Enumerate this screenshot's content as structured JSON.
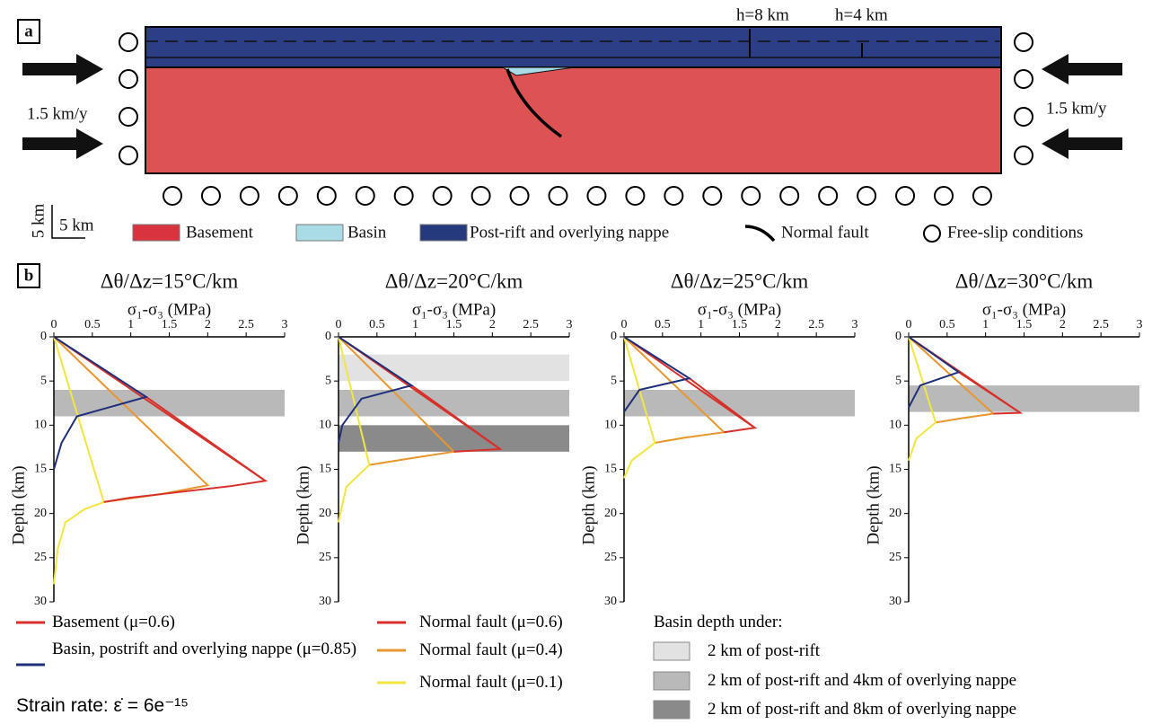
{
  "panel_a": {
    "label": "a",
    "h_labels": [
      "h=8 km",
      "h=4 km"
    ],
    "velocity_left": "1.5 km/y",
    "velocity_right": "1.5 km/y",
    "scale_vertical": "5 km",
    "scale_horizontal": "5 km",
    "legend": [
      {
        "text": "Basement",
        "color": "#d9333f"
      },
      {
        "text": "Basin",
        "color": "#a9dce6"
      },
      {
        "text": "Post-rift and overlying nappe",
        "color": "#243a7c"
      },
      {
        "text": "Normal fault"
      },
      {
        "text": "Free-slip conditions"
      }
    ]
  },
  "panel_b_label": "b",
  "chart_data": [
    {
      "type": "line",
      "title": "Δθ/Δz=15°C/km",
      "x_label": "σ₁-σ₃ (MPa)",
      "y_label": "Depth (km)",
      "xlim": [
        0,
        3
      ],
      "ylim": [
        30,
        0
      ],
      "xticks": [
        0,
        0.5,
        1,
        1.5,
        2,
        2.5,
        3
      ],
      "yticks": [
        0,
        5,
        10,
        15,
        20,
        25,
        30
      ],
      "bands": [
        {
          "from": 6,
          "to": 9,
          "color": "#b9b9b9"
        }
      ],
      "series": [
        {
          "color": "#d7302a",
          "x": [
            0,
            2.75
          ],
          "y": [
            0,
            16.3
          ]
        },
        {
          "color": "#e8962e",
          "x": [
            0,
            2.0,
            1.4,
            0.65
          ],
          "y": [
            0,
            16.8,
            17.8,
            18.7
          ]
        },
        {
          "color": "#f2e640",
          "x": [
            0,
            0.65,
            0.4,
            0.15,
            0.05,
            0
          ],
          "y": [
            0,
            18.7,
            19.5,
            21,
            24,
            28
          ]
        },
        {
          "color": "#d7302a",
          "x": [
            1.2,
            2.75,
            2.3,
            1.6,
            1.0,
            0.65
          ],
          "y": [
            6.8,
            16.3,
            16.9,
            17.6,
            18.2,
            18.7
          ]
        },
        {
          "color": "#1f2f7a",
          "x": [
            0,
            1.2,
            0.3,
            0.1,
            0
          ],
          "y": [
            0,
            6.8,
            9,
            12,
            15
          ]
        }
      ]
    },
    {
      "type": "line",
      "title": "Δθ/Δz=20°C/km",
      "x_label": "σ₁-σ₃ (MPa)",
      "y_label": "Depth (km)",
      "xlim": [
        0,
        3
      ],
      "ylim": [
        30,
        0
      ],
      "xticks": [
        0,
        0.5,
        1,
        1.5,
        2,
        2.5,
        3
      ],
      "yticks": [
        0,
        5,
        10,
        15,
        20,
        25,
        30
      ],
      "bands": [
        {
          "from": 2,
          "to": 5,
          "color": "#e2e2e2"
        },
        {
          "from": 6,
          "to": 9,
          "color": "#b9b9b9"
        },
        {
          "from": 10,
          "to": 13,
          "color": "#8a8a8a"
        }
      ],
      "series": [
        {
          "color": "#d7302a",
          "x": [
            0,
            2.1
          ],
          "y": [
            0,
            12.7
          ]
        },
        {
          "color": "#e8962e",
          "x": [
            0,
            1.5,
            0.9,
            0.4
          ],
          "y": [
            0,
            13,
            13.8,
            14.5
          ]
        },
        {
          "color": "#f2e640",
          "x": [
            0,
            0.4,
            0.1,
            0
          ],
          "y": [
            0,
            14.5,
            17,
            21
          ]
        },
        {
          "color": "#d7302a",
          "x": [
            0.95,
            2.1,
            1.5
          ],
          "y": [
            5.5,
            12.7,
            13
          ]
        },
        {
          "color": "#1f2f7a",
          "x": [
            0,
            0.95,
            0.3,
            0.05,
            0
          ],
          "y": [
            0,
            5.5,
            7,
            10,
            12
          ]
        }
      ]
    },
    {
      "type": "line",
      "title": "Δθ/Δz=25°C/km",
      "x_label": "σ₁-σ₃ (MPa)",
      "y_label": "Depth (km)",
      "xlim": [
        0,
        3
      ],
      "ylim": [
        30,
        0
      ],
      "xticks": [
        0,
        0.5,
        1,
        1.5,
        2,
        2.5,
        3
      ],
      "yticks": [
        0,
        5,
        10,
        15,
        20,
        25,
        30
      ],
      "bands": [
        {
          "from": 6,
          "to": 9,
          "color": "#b9b9b9"
        }
      ],
      "series": [
        {
          "color": "#d7302a",
          "x": [
            0,
            1.7
          ],
          "y": [
            0,
            10.3
          ]
        },
        {
          "color": "#e8962e",
          "x": [
            0,
            1.3,
            0.8,
            0.4
          ],
          "y": [
            0,
            10.8,
            11.4,
            12
          ]
        },
        {
          "color": "#f2e640",
          "x": [
            0,
            0.4,
            0.1,
            0
          ],
          "y": [
            0,
            12,
            14,
            16
          ]
        },
        {
          "color": "#d7302a",
          "x": [
            0.85,
            1.7,
            1.3
          ],
          "y": [
            4.7,
            10.3,
            10.8
          ]
        },
        {
          "color": "#1f2f7a",
          "x": [
            0,
            0.85,
            0.2,
            0
          ],
          "y": [
            0,
            4.7,
            6,
            8.5
          ]
        }
      ]
    },
    {
      "type": "line",
      "title": "Δθ/Δz=30°C/km",
      "x_label": "σ₁-σ₃ (MPa)",
      "y_label": "Depth (km)",
      "xlim": [
        0,
        3
      ],
      "ylim": [
        30,
        0
      ],
      "xticks": [
        0,
        0.5,
        1,
        1.5,
        2,
        2.5,
        3
      ],
      "yticks": [
        0,
        5,
        10,
        15,
        20,
        25,
        30
      ],
      "bands": [
        {
          "from": 5.5,
          "to": 8.5,
          "color": "#b9b9b9"
        }
      ],
      "series": [
        {
          "color": "#d7302a",
          "x": [
            0,
            1.45
          ],
          "y": [
            0,
            8.6
          ]
        },
        {
          "color": "#e8962e",
          "x": [
            0,
            1.1,
            0.7,
            0.35
          ],
          "y": [
            0,
            8.7,
            9.2,
            9.7
          ]
        },
        {
          "color": "#f2e640",
          "x": [
            0,
            0.35,
            0.1,
            0
          ],
          "y": [
            0,
            9.7,
            11.5,
            14
          ]
        },
        {
          "color": "#d7302a",
          "x": [
            0.65,
            1.45,
            1.1
          ],
          "y": [
            4,
            8.6,
            8.7
          ]
        },
        {
          "color": "#1f2f7a",
          "x": [
            0,
            0.65,
            0.15,
            0
          ],
          "y": [
            0,
            4,
            5.5,
            8
          ]
        }
      ]
    }
  ],
  "legend": {
    "lines": [
      {
        "text": "Basement (μ=0.6)",
        "color": "#d7302a"
      },
      {
        "text": "Basin, postrift and overlying nappe (μ=0.85)",
        "color": "#1f2f7a"
      },
      {
        "text": "Normal fault (μ=0.6)",
        "color": "#d7302a"
      },
      {
        "text": "Normal fault (μ=0.4)",
        "color": "#e8962e"
      },
      {
        "text": "Normal fault (μ=0.1)",
        "color": "#f2e640"
      }
    ],
    "strain_rate": "Strain rate:  ε̇ = 6e⁻¹⁵",
    "basin_title": "Basin depth under:",
    "basins": [
      {
        "text": "2 km of post-rift",
        "color": "#e2e2e2"
      },
      {
        "text": "2 km of post-rift and 4km of overlying nappe",
        "color": "#b9b9b9"
      },
      {
        "text": "2 km of post-rift and 8km of overlying nappe",
        "color": "#8a8a8a"
      }
    ]
  }
}
